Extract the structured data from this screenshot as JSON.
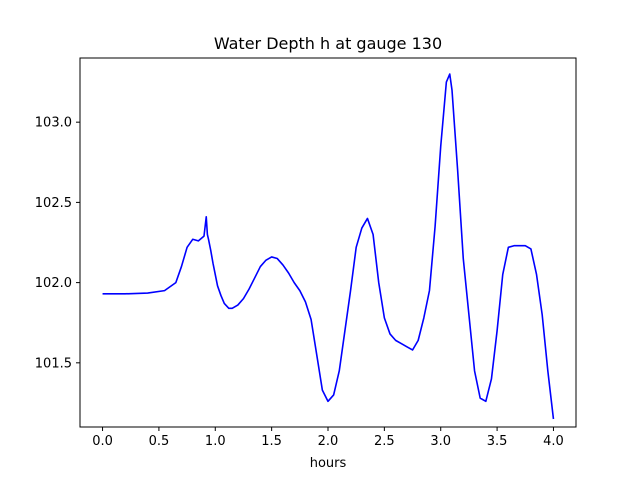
{
  "chart_data": {
    "type": "line",
    "title": "Water Depth h at gauge 130",
    "xlabel": "hours",
    "ylabel": "",
    "xlim": [
      -0.2,
      4.2
    ],
    "ylim": [
      101.1,
      103.4
    ],
    "xticks": [
      0.0,
      0.5,
      1.0,
      1.5,
      2.0,
      2.5,
      3.0,
      3.5,
      4.0
    ],
    "xtick_labels": [
      "0.0",
      "0.5",
      "1.0",
      "1.5",
      "2.0",
      "2.5",
      "3.0",
      "3.5",
      "4.0"
    ],
    "yticks": [
      101.5,
      102.0,
      102.5,
      103.0
    ],
    "ytick_labels": [
      "101.5",
      "102.0",
      "102.5",
      "103.0"
    ],
    "grid": false,
    "series": [
      {
        "color": "#0000ff",
        "x": [
          0.0,
          0.2,
          0.4,
          0.55,
          0.65,
          0.7,
          0.75,
          0.8,
          0.85,
          0.9,
          0.92,
          0.93,
          0.94,
          0.96,
          0.98,
          1.0,
          1.02,
          1.05,
          1.08,
          1.12,
          1.15,
          1.2,
          1.25,
          1.3,
          1.35,
          1.4,
          1.45,
          1.5,
          1.55,
          1.6,
          1.65,
          1.7,
          1.75,
          1.8,
          1.85,
          1.9,
          1.95,
          2.0,
          2.05,
          2.1,
          2.15,
          2.2,
          2.25,
          2.3,
          2.35,
          2.4,
          2.45,
          2.5,
          2.55,
          2.6,
          2.65,
          2.7,
          2.75,
          2.8,
          2.85,
          2.9,
          2.95,
          3.0,
          3.05,
          3.08,
          3.1,
          3.15,
          3.2,
          3.25,
          3.3,
          3.35,
          3.4,
          3.45,
          3.5,
          3.55,
          3.6,
          3.65,
          3.7,
          3.75,
          3.8,
          3.85,
          3.9,
          3.95,
          4.0
        ],
        "y": [
          101.93,
          101.93,
          101.935,
          101.95,
          102.0,
          102.1,
          102.22,
          102.27,
          102.26,
          102.29,
          102.41,
          102.3,
          102.27,
          102.2,
          102.12,
          102.05,
          101.98,
          101.92,
          101.87,
          101.84,
          101.84,
          101.86,
          101.9,
          101.96,
          102.03,
          102.1,
          102.14,
          102.16,
          102.15,
          102.11,
          102.06,
          102.0,
          101.95,
          101.88,
          101.77,
          101.55,
          101.33,
          101.26,
          101.3,
          101.45,
          101.7,
          101.95,
          102.22,
          102.34,
          102.4,
          102.3,
          102.0,
          101.78,
          101.68,
          101.64,
          101.62,
          101.6,
          101.58,
          101.64,
          101.78,
          101.95,
          102.35,
          102.85,
          103.25,
          103.3,
          103.2,
          102.7,
          102.15,
          101.8,
          101.45,
          101.28,
          101.26,
          101.4,
          101.7,
          102.05,
          102.22,
          102.23,
          102.23,
          102.23,
          102.21,
          102.05,
          101.8,
          101.45,
          101.15
        ]
      }
    ]
  }
}
